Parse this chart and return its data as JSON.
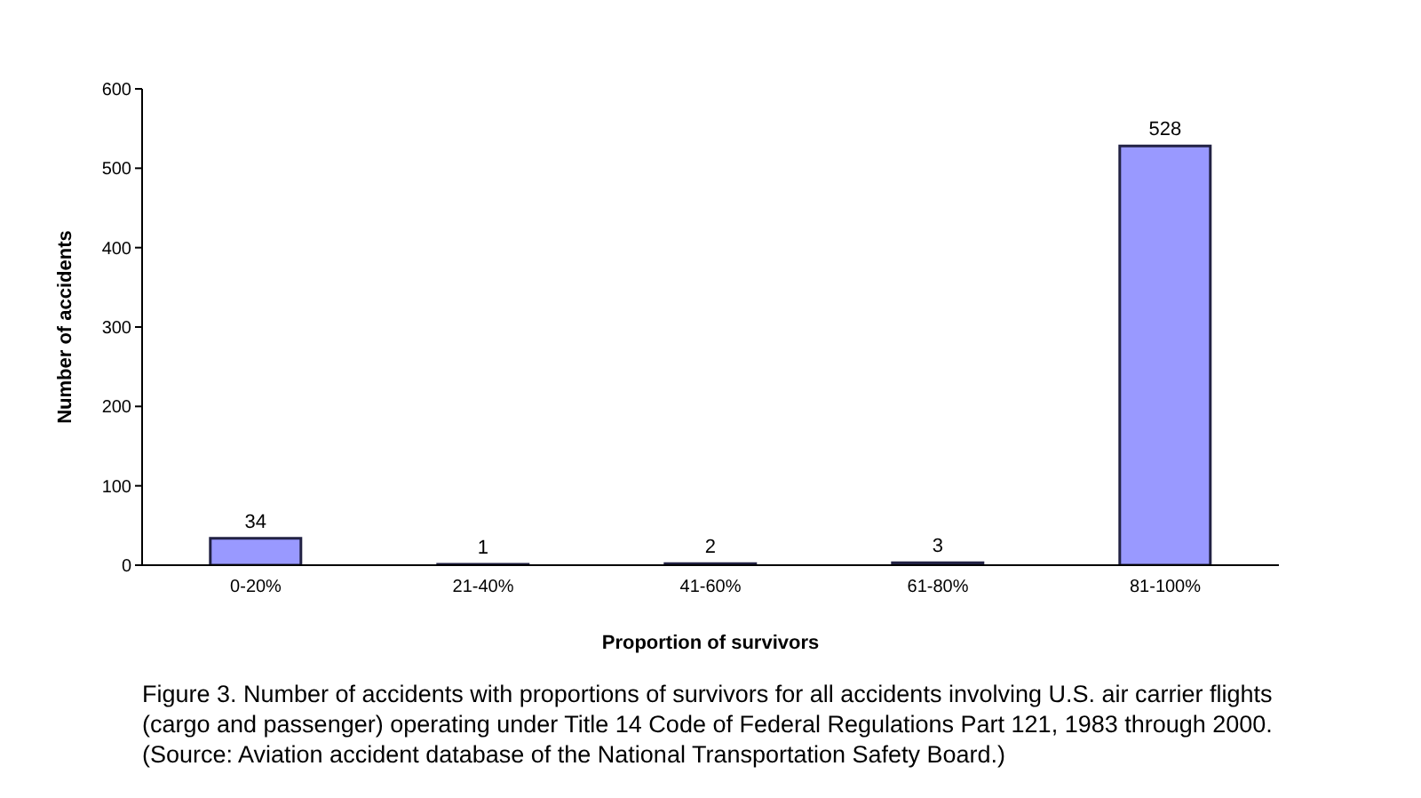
{
  "chart_data": {
    "type": "bar",
    "xlabel": "Proportion of survivors",
    "ylabel": "Number of accidents",
    "categories": [
      "0-20%",
      "21-40%",
      "41-60%",
      "61-80%",
      "81-100%"
    ],
    "values": [
      34,
      1,
      2,
      3,
      528
    ],
    "color": "#9999ff",
    "ylim": [
      0,
      600
    ],
    "yticks": [
      0,
      100,
      200,
      300,
      400,
      500,
      600
    ],
    "grid": false,
    "data_labels": true,
    "annotations": [
      "Figure 3. Number of accidents with proportions of survivors for all accidents involving U.S. air carrier flights (cargo and passenger) operating under Title 14 Code of Federal Regulations Part 121, 1983 through 2000. (Source: Aviation accident database of the National Transportation Safety Board.)"
    ]
  }
}
